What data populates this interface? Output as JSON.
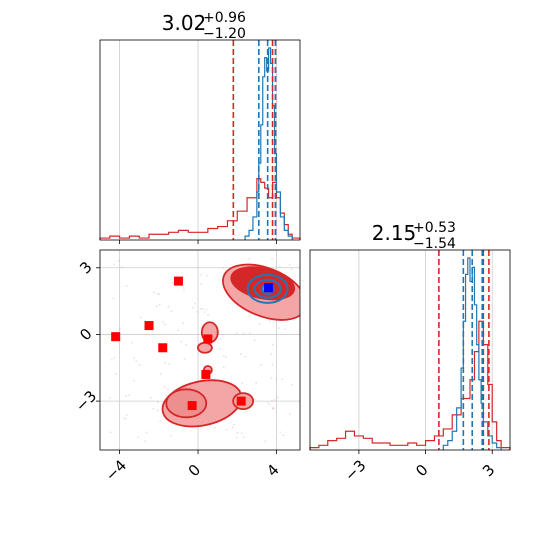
{
  "chart_data": {
    "type": "corner",
    "parameters": [
      {
        "title_main": "3.02",
        "title_sup": "+0.96",
        "title_sub": "−1.20",
        "range": [
          -5,
          5.2
        ],
        "ticks": [
          -4,
          0,
          4
        ],
        "tick_labels": [
          "−4",
          "0",
          "4"
        ]
      },
      {
        "title_main": "2.15",
        "title_sup": "+0.53",
        "title_sub": "−1.54",
        "range": [
          -5.2,
          3.8
        ],
        "ticks": [
          -3,
          0,
          3
        ],
        "tick_labels": [
          "−3",
          "0",
          "3"
        ]
      }
    ],
    "series": [
      {
        "color": "#d62728",
        "hist1": {
          "bins": [
            -5.0,
            -4.5,
            -4.0,
            -3.5,
            -3.0,
            -2.5,
            -2.0,
            -1.5,
            -1.0,
            -0.5,
            0.0,
            0.5,
            1.0,
            1.5,
            2.0,
            2.5,
            3.0,
            3.2,
            3.4,
            3.6,
            3.8,
            4.0,
            4.2,
            4.4,
            4.6,
            4.8,
            5.2
          ],
          "counts": [
            0.01,
            0.02,
            0.01,
            0.02,
            0.01,
            0.03,
            0.03,
            0.04,
            0.05,
            0.04,
            0.04,
            0.06,
            0.07,
            0.1,
            0.15,
            0.22,
            0.32,
            0.3,
            0.27,
            0.22,
            0.3,
            0.22,
            0.14,
            0.08,
            0.03,
            0.01
          ]
        },
        "hist1_quantiles": [
          1.8,
          3.8,
          3.95
        ],
        "hist2": {
          "bins": [
            -5.2,
            -4.8,
            -4.4,
            -4.0,
            -3.6,
            -3.2,
            -2.8,
            -2.4,
            -2.0,
            -1.6,
            -1.2,
            -0.8,
            -0.4,
            0.0,
            0.4,
            0.8,
            1.2,
            1.6,
            2.0,
            2.2,
            2.4,
            2.6,
            2.8,
            3.0,
            3.2,
            3.4,
            3.8
          ],
          "counts": [
            0.01,
            0.02,
            0.04,
            0.05,
            0.08,
            0.06,
            0.05,
            0.03,
            0.03,
            0.02,
            0.02,
            0.03,
            0.02,
            0.04,
            0.06,
            0.09,
            0.15,
            0.22,
            0.3,
            0.42,
            0.55,
            0.45,
            0.28,
            0.12,
            0.04,
            0.01
          ]
        },
        "hist2_quantiles": [
          0.6,
          2.6,
          2.85
        ],
        "points": [
          [
            -4.2,
            -0.1
          ],
          [
            -2.5,
            0.4
          ],
          [
            -1.8,
            -0.6
          ],
          [
            -1.0,
            2.4
          ],
          [
            0.5,
            -0.2
          ],
          [
            0.4,
            -1.8
          ],
          [
            -0.3,
            -3.2
          ],
          [
            2.2,
            -3.0
          ],
          [
            3.6,
            2.1
          ]
        ]
      },
      {
        "color": "#1f77b4",
        "hist1": {
          "bins": [
            2.4,
            2.6,
            2.8,
            3.0,
            3.1,
            3.2,
            3.3,
            3.4,
            3.5,
            3.6,
            3.7,
            3.8,
            3.9,
            4.0,
            4.2,
            4.4,
            4.6,
            4.8
          ],
          "counts": [
            0.02,
            0.05,
            0.12,
            0.25,
            0.4,
            0.6,
            0.85,
            0.95,
            0.88,
            1.0,
            0.92,
            0.7,
            0.45,
            0.25,
            0.12,
            0.05,
            0.02
          ]
        },
        "hist1_quantiles": [
          3.1,
          3.55,
          3.95
        ],
        "hist2": {
          "bins": [
            0.8,
            1.0,
            1.2,
            1.4,
            1.6,
            1.7,
            1.8,
            1.9,
            2.0,
            2.1,
            2.2,
            2.3,
            2.4,
            2.5,
            2.6,
            2.8,
            3.0,
            3.2,
            3.4
          ],
          "counts": [
            0.02,
            0.04,
            0.08,
            0.18,
            0.35,
            0.55,
            0.75,
            0.82,
            0.72,
            0.78,
            0.62,
            0.45,
            0.3,
            0.2,
            0.12,
            0.06,
            0.03,
            0.01
          ]
        },
        "hist2_quantiles": [
          1.7,
          2.1,
          2.55
        ],
        "points": [
          [
            3.6,
            2.1
          ]
        ]
      }
    ]
  }
}
